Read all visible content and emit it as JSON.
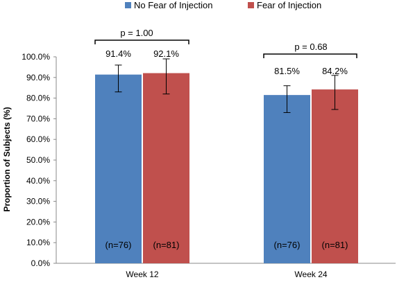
{
  "chart_data": {
    "type": "bar",
    "categories": [
      "Week 12",
      "Week 24"
    ],
    "series": [
      {
        "name": "No Fear of Injection",
        "color": "#4F81BD",
        "values": [
          91.4,
          81.5
        ],
        "value_labels": [
          "91.4%",
          "81.5%"
        ],
        "error_low": [
          83.0,
          73.0
        ],
        "error_high": [
          96.0,
          86.0
        ],
        "n_labels": [
          "(n=76)",
          "(n=76)"
        ]
      },
      {
        "name": "Fear of Injection",
        "color": "#C0504D",
        "values": [
          92.1,
          84.2
        ],
        "value_labels": [
          "92.1%",
          "84.2%"
        ],
        "error_low": [
          82.0,
          74.5
        ],
        "error_high": [
          99.0,
          91.0
        ],
        "n_labels": [
          "(n=81)",
          "(n=81)"
        ]
      }
    ],
    "p_values": [
      "p = 1.00",
      "p = 0.68"
    ],
    "ylabel": "Proportion of Subjects (%)",
    "xlabel": "",
    "ylim": [
      0,
      100
    ],
    "yticks": [
      "0.0%",
      "10.0%",
      "20.0%",
      "30.0%",
      "40.0%",
      "50.0%",
      "60.0%",
      "70.0%",
      "80.0%",
      "90.0%",
      "100.0%"
    ],
    "legend_position": "top-center",
    "grid": false
  }
}
